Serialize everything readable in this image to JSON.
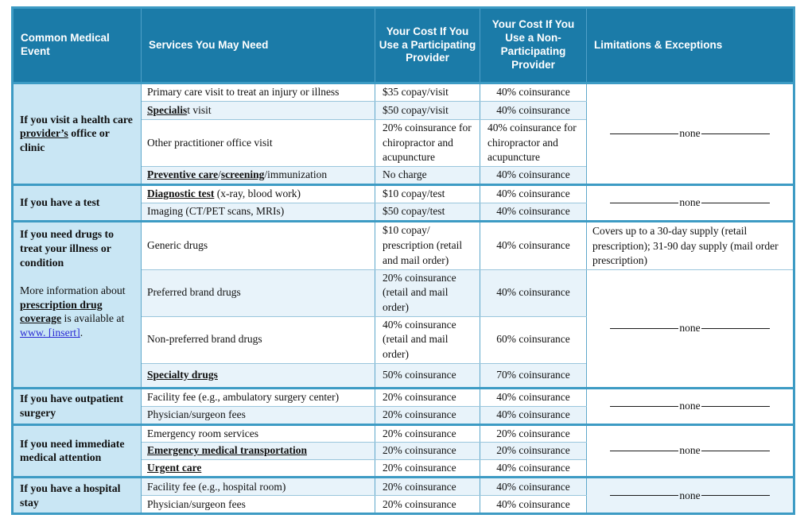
{
  "labels": {
    "none": "none"
  },
  "colors": {
    "header_bg": "#1B7BA8",
    "event_bg": "#C9E6F4",
    "stripe_bg": "#E8F3FA",
    "grid_border": "#3D9BC4",
    "link": "#2A2AD4"
  },
  "header": {
    "event": "Common Medical Event",
    "service": "Services You May Need",
    "participating": "Your Cost If You Use a Participating Provider",
    "non_participating": "Your Cost If You Use a Non-Participating Provider",
    "limitations": "Limitations & Exceptions"
  },
  "groups": [
    {
      "event": {
        "segments": [
          {
            "t": "If you visit a health care "
          },
          {
            "t": "provider’s",
            "s": "term"
          },
          {
            "t": " office or clinic"
          }
        ]
      },
      "rows": [
        {
          "service": [
            {
              "t": "Primary care visit to treat an injury or illness"
            }
          ],
          "participating": "$35 copay/visit",
          "non_participating": "40% coinsurance"
        },
        {
          "service": [
            {
              "t": "Specialis",
              "s": "term"
            },
            {
              "t": "t visit"
            }
          ],
          "participating": "$50 copay/visit",
          "non_participating": "40% coinsurance"
        },
        {
          "service": [
            {
              "t": "Other practitioner office visit"
            }
          ],
          "participating": "20% coinsurance for chiropractor and acupuncture",
          "non_participating": "40% coinsurance for chiropractor and acupuncture"
        },
        {
          "service": [
            {
              "t": "Preventive care",
              "s": "term"
            },
            {
              "t": "/"
            },
            {
              "t": "screening",
              "s": "term"
            },
            {
              "t": "/immunization"
            }
          ],
          "participating": "No charge",
          "non_participating": "40% coinsurance"
        }
      ],
      "limitation": "none"
    },
    {
      "event": {
        "segments": [
          {
            "t": "If you have a test"
          }
        ]
      },
      "rows": [
        {
          "service": [
            {
              "t": "Diagnostic test",
              "s": "term"
            },
            {
              "t": " (x-ray, blood work)"
            }
          ],
          "participating": "$10 copay/test",
          "non_participating": "40% coinsurance"
        },
        {
          "service": [
            {
              "t": "Imaging (CT/PET scans, MRIs)"
            }
          ],
          "participating": "$50 copay/test",
          "non_participating": "40% coinsurance"
        }
      ],
      "limitation": "none"
    },
    {
      "event": {
        "title": "If you need drugs to treat your illness or condition",
        "note_segments": [
          {
            "t": "More information about "
          },
          {
            "t": "prescription drug coverage",
            "s": "term"
          },
          {
            "t": " is available at "
          },
          {
            "t": "www. [insert]",
            "s": "link"
          },
          {
            "t": "."
          }
        ]
      },
      "rows": [
        {
          "service": [
            {
              "t": "Generic drugs"
            }
          ],
          "participating": "$10 copay/ prescription (retail and mail order)",
          "non_participating": "40% coinsurance",
          "limitation_text": "Covers up to a 30-day supply (retail prescription); 31-90 day supply (mail order prescription)"
        },
        {
          "service": [
            {
              "t": "Preferred brand drugs"
            }
          ],
          "participating": "20% coinsurance (retail and mail order)",
          "non_participating": "40% coinsurance"
        },
        {
          "service": [
            {
              "t": "Non-preferred brand drugs"
            }
          ],
          "participating": "40% coinsurance (retail and mail order)",
          "non_participating": "60% coinsurance"
        },
        {
          "service": [
            {
              "t": "Specialty drugs",
              "s": "term"
            }
          ],
          "participating": "50% coinsurance",
          "non_participating": "70% coinsurance"
        }
      ],
      "limitation": "none"
    },
    {
      "event": {
        "segments": [
          {
            "t": "If you have outpatient surgery"
          }
        ]
      },
      "rows": [
        {
          "service": [
            {
              "t": "Facility fee (e.g., ambulatory surgery center)"
            }
          ],
          "participating": "20% coinsurance",
          "non_participating": "40% coinsurance"
        },
        {
          "service": [
            {
              "t": "Physician/surgeon fees"
            }
          ],
          "participating": "20% coinsurance",
          "non_participating": "40% coinsurance"
        }
      ],
      "limitation": "none"
    },
    {
      "event": {
        "segments": [
          {
            "t": "If you need immediate medical attention"
          }
        ]
      },
      "rows": [
        {
          "service": [
            {
              "t": "Emergency room services"
            }
          ],
          "participating": "20% coinsurance",
          "non_participating": "20% coinsurance"
        },
        {
          "service": [
            {
              "t": "Emergency medical transportation",
              "s": "term"
            }
          ],
          "participating": "20% coinsurance",
          "non_participating": "20% coinsurance"
        },
        {
          "service": [
            {
              "t": "Urgent care",
              "s": "term"
            }
          ],
          "participating": "20% coinsurance",
          "non_participating": "40% coinsurance"
        }
      ],
      "limitation": "none"
    },
    {
      "event": {
        "segments": [
          {
            "t": "If you have a hospital stay"
          }
        ]
      },
      "rows": [
        {
          "service": [
            {
              "t": "Facility fee (e.g., hospital room)"
            }
          ],
          "participating": "20% coinsurance",
          "non_participating": "40% coinsurance"
        },
        {
          "service": [
            {
              "t": "Physician/surgeon fees"
            }
          ],
          "participating": "20% coinsurance",
          "non_participating": "40% coinsurance"
        }
      ],
      "limitation": "none"
    }
  ]
}
